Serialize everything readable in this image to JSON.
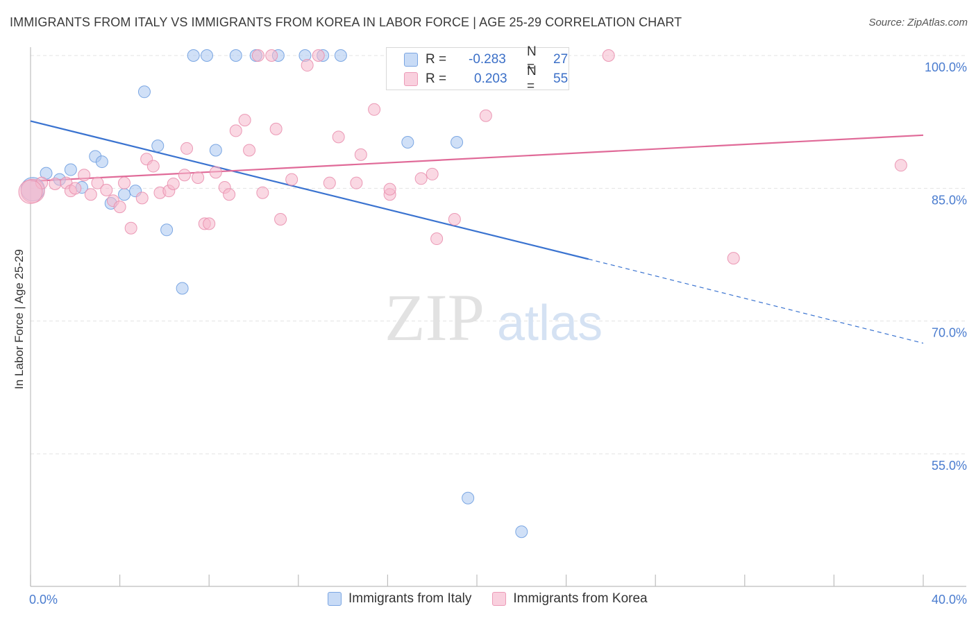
{
  "title": "IMMIGRANTS FROM ITALY VS IMMIGRANTS FROM KOREA IN LABOR FORCE | AGE 25-29 CORRELATION CHART",
  "source": "Source: ZipAtlas.com",
  "watermark": {
    "zip": "ZIP",
    "atlas": "atlas"
  },
  "stats": [
    {
      "r_label": "R =",
      "r_value": "-0.283",
      "n_label": "N =",
      "n_value": "27",
      "color": "#a9c6f0"
    },
    {
      "r_label": "R =",
      "r_value": "0.203",
      "n_label": "N =",
      "n_value": "55",
      "color": "#f5b8cc"
    }
  ],
  "legend": [
    {
      "label": "Immigrants from Italy",
      "color": "#a9c6f0"
    },
    {
      "label": "Immigrants from Korea",
      "color": "#f5b8cc"
    }
  ],
  "chart_data": {
    "type": "scatter",
    "title": "IMMIGRANTS FROM ITALY VS IMMIGRANTS FROM KOREA IN LABOR FORCE | AGE 25-29 CORRELATION CHART",
    "xlabel": "",
    "ylabel": "In Labor Force | Age 25-29",
    "xlim": [
      0,
      40
    ],
    "ylim": [
      40,
      102
    ],
    "x_tick_labels": [
      {
        "value": 0,
        "label": "0.0%"
      },
      {
        "value": 40,
        "label": "40.0%"
      }
    ],
    "y_tick_labels": [
      {
        "value": 100,
        "label": "100.0%"
      },
      {
        "value": 85,
        "label": "85.0%"
      },
      {
        "value": 70,
        "label": "70.0%"
      },
      {
        "value": 55,
        "label": "55.0%"
      }
    ],
    "series": [
      {
        "name": "Immigrants from Italy",
        "color": "#a9c6f0",
        "stroke": "#6f9ee0",
        "line_color": "#3a73d0",
        "trend": {
          "x0": 0,
          "y0": 92.6,
          "x1": 25,
          "y1": 77.0,
          "dash_x1": 40,
          "dash_y1": 67.5
        },
        "points": [
          [
            0.1,
            84.9
          ],
          [
            0.7,
            86.7
          ],
          [
            1.3,
            86.0
          ],
          [
            1.8,
            87.1
          ],
          [
            2.3,
            85.1
          ],
          [
            2.9,
            88.6
          ],
          [
            3.2,
            88.0
          ],
          [
            3.6,
            83.3
          ],
          [
            4.2,
            84.3
          ],
          [
            4.7,
            84.7
          ],
          [
            5.1,
            95.9
          ],
          [
            5.7,
            89.8
          ],
          [
            6.1,
            80.3
          ],
          [
            6.8,
            73.7
          ],
          [
            7.3,
            100.0
          ],
          [
            7.9,
            100.0
          ],
          [
            8.3,
            89.3
          ],
          [
            9.2,
            100.0
          ],
          [
            10.1,
            100.0
          ],
          [
            11.1,
            100.0
          ],
          [
            12.3,
            100.0
          ],
          [
            13.1,
            100.0
          ],
          [
            13.9,
            100.0
          ],
          [
            16.9,
            90.2
          ],
          [
            19.1,
            90.2
          ],
          [
            19.6,
            50.0
          ],
          [
            22.0,
            46.2
          ]
        ]
      },
      {
        "name": "Immigrants from Korea",
        "color": "#f5b8cc",
        "stroke": "#e98fae",
        "line_color": "#e06a98",
        "trend": {
          "x0": 0,
          "y0": 85.8,
          "x1": 40,
          "y1": 91.0
        },
        "points": [
          [
            0.1,
            84.7
          ],
          [
            0.5,
            85.6
          ],
          [
            1.1,
            85.5
          ],
          [
            1.6,
            85.6
          ],
          [
            1.8,
            84.7
          ],
          [
            2.0,
            85.0
          ],
          [
            2.4,
            86.5
          ],
          [
            2.7,
            84.3
          ],
          [
            3.0,
            85.6
          ],
          [
            3.4,
            84.8
          ],
          [
            3.7,
            83.6
          ],
          [
            4.0,
            82.9
          ],
          [
            4.2,
            85.6
          ],
          [
            4.5,
            80.5
          ],
          [
            5.0,
            83.9
          ],
          [
            5.2,
            88.3
          ],
          [
            5.5,
            87.5
          ],
          [
            5.8,
            84.5
          ],
          [
            6.2,
            84.7
          ],
          [
            6.4,
            85.5
          ],
          [
            6.9,
            86.5
          ],
          [
            7.0,
            89.5
          ],
          [
            7.5,
            86.2
          ],
          [
            7.8,
            81.0
          ],
          [
            8.0,
            81.0
          ],
          [
            8.3,
            86.8
          ],
          [
            8.7,
            85.1
          ],
          [
            8.9,
            84.3
          ],
          [
            9.2,
            91.5
          ],
          [
            9.6,
            92.7
          ],
          [
            9.8,
            89.3
          ],
          [
            10.2,
            100.0
          ],
          [
            10.4,
            84.5
          ],
          [
            10.8,
            100.0
          ],
          [
            11.0,
            91.7
          ],
          [
            11.2,
            81.5
          ],
          [
            11.7,
            86.0
          ],
          [
            12.4,
            98.9
          ],
          [
            12.9,
            100.0
          ],
          [
            13.4,
            85.6
          ],
          [
            13.8,
            90.8
          ],
          [
            14.6,
            85.6
          ],
          [
            14.8,
            88.8
          ],
          [
            15.4,
            93.9
          ],
          [
            16.1,
            84.3
          ],
          [
            16.1,
            84.9
          ],
          [
            17.5,
            86.1
          ],
          [
            18.0,
            86.6
          ],
          [
            18.2,
            79.3
          ],
          [
            19.0,
            81.5
          ],
          [
            20.4,
            93.2
          ],
          [
            25.9,
            100.0
          ],
          [
            31.5,
            77.1
          ],
          [
            39.0,
            87.6
          ],
          [
            0.0,
            84.6
          ]
        ]
      }
    ]
  }
}
